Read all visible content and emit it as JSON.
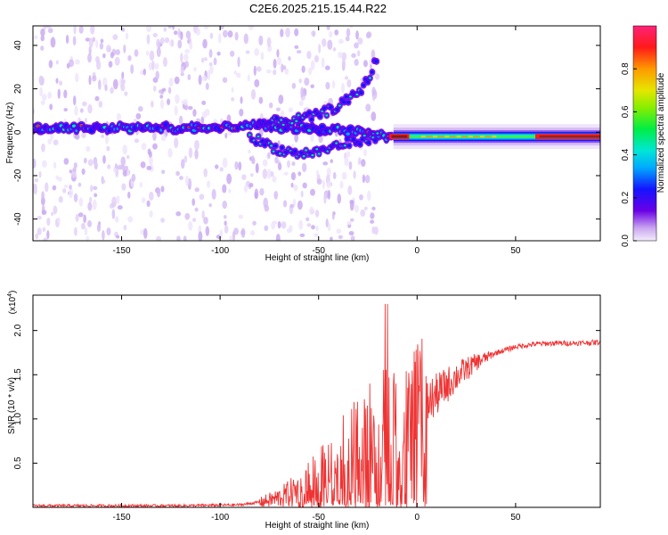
{
  "title": "C2E6.2025.215.15.44.R22",
  "chart_data": [
    {
      "type": "heatmap",
      "xlabel": "Height of straight line (km)",
      "ylabel": "Frequency (Hz)",
      "xlim": [
        -195,
        93
      ],
      "ylim": [
        -50,
        49
      ],
      "xticks": [
        -150,
        -100,
        -50,
        0,
        50
      ],
      "yticks": [
        -40,
        -20,
        0,
        20,
        40
      ],
      "colorbar": {
        "label": "Normalized spectral amplitude",
        "range": [
          0,
          1
        ],
        "ticks": [
          0.0,
          0.2,
          0.4,
          0.6,
          0.8
        ]
      },
      "ridge": {
        "x": [
          -195,
          -150,
          -110,
          -100,
          -80,
          -60,
          -50,
          -40,
          -30,
          -20,
          -15,
          -10,
          -5,
          0,
          20,
          50,
          93
        ],
        "y": [
          2,
          2,
          2,
          2,
          3,
          2,
          1,
          1,
          0,
          -1,
          -2,
          -2,
          -2,
          -2,
          -2,
          -3,
          -3
        ]
      },
      "upper_branch": {
        "x": [
          -80,
          -60,
          -50,
          -40,
          -30,
          -25,
          -20
        ],
        "y": [
          4,
          6,
          8,
          12,
          18,
          24,
          35
        ]
      },
      "lower_branch": {
        "x": [
          -85,
          -70,
          -60,
          -50,
          -40,
          -30,
          -20
        ],
        "y": [
          -2,
          -8,
          -10,
          -9,
          -6,
          -4,
          -2
        ]
      }
    },
    {
      "type": "line",
      "xlabel": "Height of straight line (km)",
      "ylabel": "SNR (10 * v/v)",
      "y_scale_label": "(x10",
      "y_scale_exp": "4",
      "y_scale_close": ")",
      "xlim": [
        -195,
        93
      ],
      "ylim": [
        0,
        2.4
      ],
      "xticks": [
        -150,
        -100,
        -50,
        0,
        50
      ],
      "yticks": [
        0.5,
        1.0,
        1.5,
        2.0
      ],
      "series": [
        {
          "color": "#ee3333",
          "x": [
            -195,
            -160,
            -120,
            -90,
            -80,
            -70,
            -60,
            -50,
            -45,
            -40,
            -35,
            -30,
            -25,
            -20,
            -15,
            -10,
            -5,
            0,
            5,
            10,
            15,
            20,
            30,
            40,
            50,
            60,
            70,
            80,
            93
          ],
          "y": [
            0.02,
            0.02,
            0.02,
            0.03,
            0.06,
            0.12,
            0.22,
            0.35,
            0.45,
            0.55,
            0.6,
            0.7,
            0.75,
            0.8,
            0.9,
            0.85,
            0.9,
            1.05,
            1.2,
            1.3,
            1.4,
            1.5,
            1.65,
            1.75,
            1.82,
            1.85,
            1.86,
            1.86,
            1.87
          ]
        }
      ]
    }
  ]
}
